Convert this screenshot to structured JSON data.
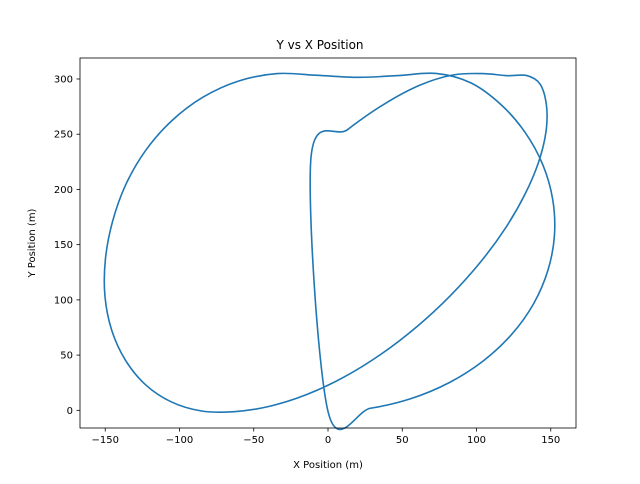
{
  "chart_data": {
    "type": "line",
    "title": "Y vs X Position",
    "xlabel": "X Position (m)",
    "ylabel": "Y Position (m)",
    "xlim": [
      -167,
      167
    ],
    "ylim": [
      -16,
      319
    ],
    "xticks": [
      -150,
      -100,
      -50,
      0,
      50,
      100,
      150
    ],
    "xtick_labels": [
      "−150",
      "−100",
      "−50",
      "0",
      "50",
      "100",
      "150"
    ],
    "yticks": [
      0,
      50,
      100,
      150,
      200,
      250,
      300
    ],
    "ytick_labels": [
      "0",
      "50",
      "100",
      "150",
      "200",
      "250",
      "300"
    ],
    "grid": false,
    "legend": "none",
    "series": [
      {
        "color": "#1f77b4",
        "x": [
          0,
          28.5,
          56.1,
          81.8,
          104.6,
          123.7,
          138.4,
          148.1,
          152.5,
          151.3,
          144.7,
          132.9,
          116.5,
          96.2,
          72.8,
          47.3,
          20.5,
          -7,
          -34.1,
          -60.1,
          -84.1,
          -105.2,
          -122.8,
          -136.2,
          -145.1,
          -149.9,
          -150.2,
          -145.6,
          -136.3,
          -122.9,
          -105.8,
          -85.6,
          -63.1,
          -39.2,
          -14.3,
          10.9,
          35.9,
          59.9,
          82.3,
          102.3,
          119.3,
          132.6,
          141.9,
          146.8,
          147.1,
          142.8,
          133.9,
          120.8,
          103.9,
          84,
          61.7,
          37.8,
          13.1,
          -11.6
        ],
        "y": [
          -1,
          1.9,
          10.7,
          25.2,
          44.8,
          68.8,
          96.4,
          126.8,
          158.7,
          191,
          222.2,
          251.3,
          276.8,
          296.5,
          305,
          303.1,
          301.5,
          303.3,
          304.9,
          298.2,
          283.6,
          262.2,
          235.3,
          204.3,
          170.9,
          136.7,
          103.3,
          72.3,
          45.2,
          23.2,
          7.8,
          -0.5,
          -1.2,
          3.7,
          14.3,
          30.2,
          51,
          75.8,
          103.7,
          133.6,
          164.6,
          195.5,
          225.1,
          252.3,
          276.1,
          295.4,
          303.1,
          303,
          304.9,
          303.6,
          294.3,
          277.2,
          254.1,
          226.5
        ]
      }
    ]
  }
}
